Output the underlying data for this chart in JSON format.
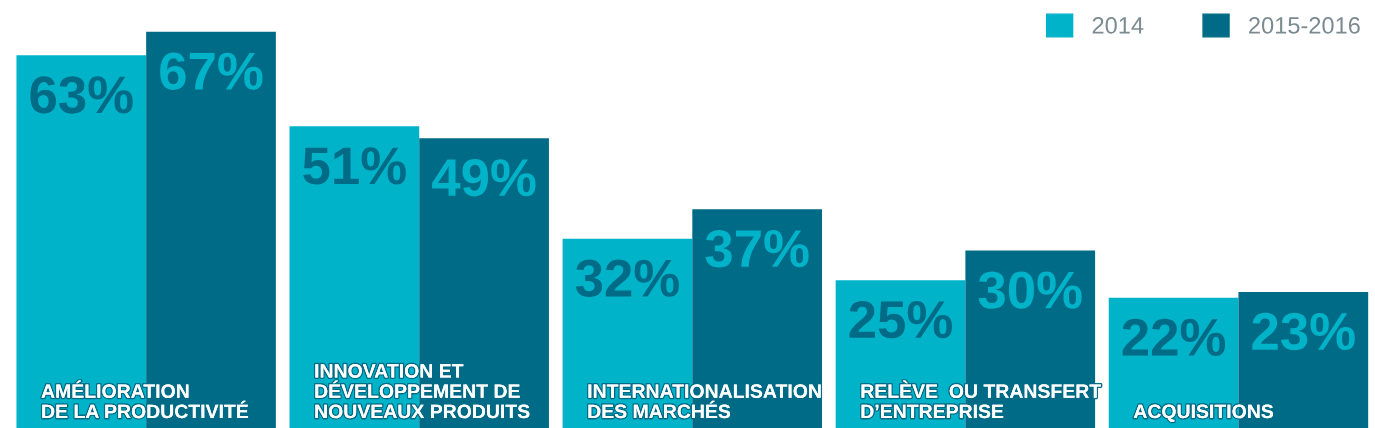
{
  "chart_data": {
    "type": "bar",
    "categories": [
      "AMÉLIORATION\nDE LA PRODUCTIVITÉ",
      "INNOVATION ET\nDÉVELOPPEMENT DE\nNOUVEAUX PRODUITS",
      "INTERNATIONALISATION\nDES MARCHÉS",
      "RELÈVE  OU TRANSFERT\nD’ENTREPRISE",
      "ACQUISITIONS"
    ],
    "series": [
      {
        "name": "2014",
        "color": "#00b3c8",
        "values": [
          63,
          51,
          32,
          25,
          22
        ],
        "value_labels": [
          "63%",
          "51%",
          "32%",
          "25%",
          "22%"
        ]
      },
      {
        "name": "2015-2016",
        "color": "#006b86",
        "values": [
          67,
          49,
          37,
          30,
          23
        ],
        "value_labels": [
          "67%",
          "49%",
          "37%",
          "30%",
          "23%"
        ]
      }
    ],
    "legend": "top right"
  }
}
